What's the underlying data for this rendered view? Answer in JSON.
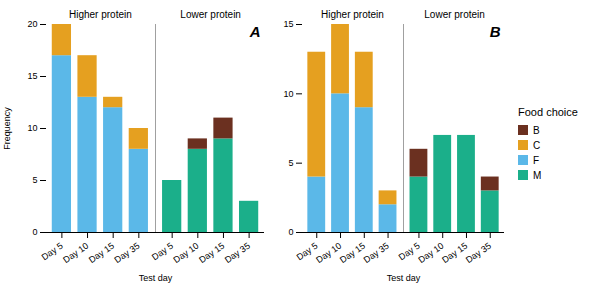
{
  "chart_data": [
    {
      "type": "bar",
      "stacked": true,
      "title": "A",
      "xlabel": "Test day",
      "ylabel": "Frequency",
      "categories": [
        "Day 5",
        "Day 10",
        "Day 15",
        "Day 35",
        "Day 5",
        "Day 10",
        "Day 15",
        "Day 35"
      ],
      "annotations": [
        "Higher protein",
        "Lower protein"
      ],
      "series": [
        {
          "name": "B",
          "color": "#6B3020",
          "values": [
            0,
            0,
            0,
            0,
            0,
            1,
            2,
            0
          ]
        },
        {
          "name": "C",
          "color": "#E5A020",
          "values": [
            3,
            4,
            1,
            2,
            0,
            0,
            0,
            0
          ]
        },
        {
          "name": "F",
          "color": "#5BB8E8",
          "values": [
            17,
            13,
            12,
            8,
            0,
            0,
            0,
            0
          ]
        },
        {
          "name": "M",
          "color": "#1BAF8A",
          "values": [
            0,
            0,
            0,
            0,
            5,
            8,
            9,
            3
          ]
        }
      ],
      "ylim": [
        0,
        20
      ],
      "yticks": [
        0,
        5,
        10,
        15,
        20
      ],
      "grid": false,
      "legend_title": "Food choice"
    },
    {
      "type": "bar",
      "stacked": true,
      "title": "B",
      "xlabel": "Test day",
      "categories": [
        "Day 5",
        "Day 10",
        "Day 15",
        "Day 35",
        "Day 5",
        "Day 10",
        "Day 15",
        "Day 35"
      ],
      "annotations": [
        "Higher protein",
        "Lower protein"
      ],
      "series": [
        {
          "name": "B",
          "color": "#6B3020",
          "values": [
            0,
            0,
            0,
            0,
            2,
            0,
            0,
            1
          ]
        },
        {
          "name": "C",
          "color": "#E5A020",
          "values": [
            9,
            5,
            4,
            1,
            0,
            0,
            0,
            0
          ]
        },
        {
          "name": "F",
          "color": "#5BB8E8",
          "values": [
            4,
            10,
            9,
            2,
            0,
            0,
            0,
            0
          ]
        },
        {
          "name": "M",
          "color": "#1BAF8A",
          "values": [
            0,
            0,
            0,
            0,
            4,
            7,
            7,
            3
          ]
        }
      ],
      "ylim": [
        0,
        15
      ],
      "yticks": [
        0,
        5,
        10,
        15
      ],
      "grid": false
    }
  ]
}
